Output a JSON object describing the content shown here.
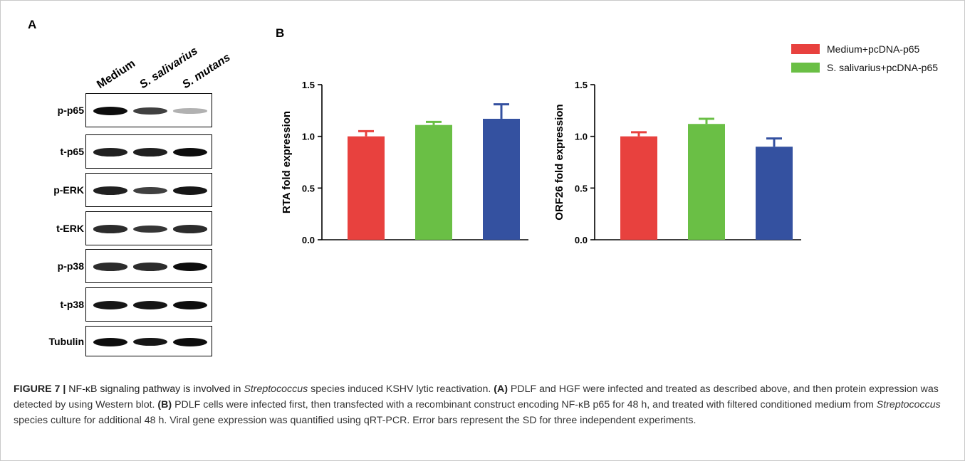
{
  "figure": {
    "panel_a_letter": "A",
    "panel_b_letter": "B",
    "blot": {
      "lanes": [
        "Medium",
        "S. salivarius",
        "S. mutans"
      ],
      "rows": [
        {
          "label": "p-p65",
          "intensity": [
            1.0,
            0.75,
            0.2
          ]
        },
        {
          "label": "t-p65",
          "intensity": [
            0.9,
            0.9,
            1.0
          ]
        },
        {
          "label": "p-ERK",
          "intensity": [
            0.9,
            0.75,
            0.95
          ]
        },
        {
          "label": "t-ERK",
          "intensity": [
            0.85,
            0.8,
            0.85
          ]
        },
        {
          "label": "p-p38",
          "intensity": [
            0.85,
            0.85,
            1.0
          ]
        },
        {
          "label": "t-p38",
          "intensity": [
            0.95,
            0.95,
            1.0
          ]
        },
        {
          "label": "Tubulin",
          "intensity": [
            1.0,
            0.95,
            1.0
          ]
        }
      ]
    },
    "legend": [
      {
        "label": "Medium+pcDNA-p65",
        "color": "#e8413e"
      },
      {
        "label": "S. salivarius+pcDNA-p65",
        "color": "#6abf45"
      }
    ],
    "colors": [
      "#e8413e",
      "#6abf45",
      "#3451a0"
    ]
  },
  "chart_data": [
    {
      "type": "bar",
      "ylabel": "RTA fold expression",
      "ylim": [
        0,
        1.5
      ],
      "yticks": [
        "0.0",
        "0.5",
        "1.0",
        "1.5"
      ],
      "values": [
        1.0,
        1.11,
        1.17
      ],
      "errors": [
        0.05,
        0.03,
        0.14
      ]
    },
    {
      "type": "bar",
      "ylabel": "ORF26 fold expression",
      "ylim": [
        0,
        1.5
      ],
      "yticks": [
        "0.0",
        "0.5",
        "1.0",
        "1.5"
      ],
      "values": [
        1.0,
        1.12,
        0.9
      ],
      "errors": [
        0.04,
        0.05,
        0.08
      ]
    }
  ],
  "caption": {
    "label": "FIGURE 7 |",
    "t1": " NF-κB signaling pathway is involved in ",
    "t1_ital": "Streptococcus",
    "t2": " species induced KSHV lytic reactivation. ",
    "a_label": "(A)",
    "t3": " PDLF and HGF were infected and treated as described above, and then protein expression was detected by using Western blot. ",
    "b_label": "(B)",
    "t4": " PDLF cells were infected first, then transfected with a recombinant construct encoding NF-κB p65 for 48 h, and treated with filtered conditioned medium from ",
    "t4_ital": "Streptococcus",
    "t5": " species culture for additional 48 h. Viral gene expression was quantified using qRT-PCR. Error bars represent the SD for three independent experiments."
  }
}
